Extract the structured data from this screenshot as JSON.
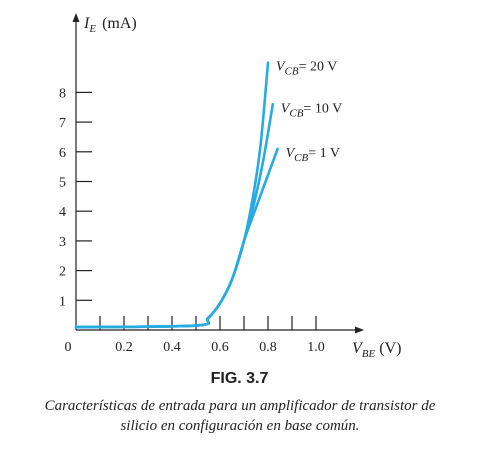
{
  "chart_data": {
    "type": "line",
    "xlabel": {
      "symbol": "V",
      "sub": "BE",
      "unit": "(V)"
    },
    "ylabel": {
      "symbol": "I",
      "sub": "E",
      "unit": "(mA)"
    },
    "xlim": [
      0,
      1.2
    ],
    "ylim": [
      0,
      9
    ],
    "origin_label": "0",
    "xticks": [
      {
        "value": 0.2,
        "label": "0.2"
      },
      {
        "value": 0.4,
        "label": "0.4"
      },
      {
        "value": 0.6,
        "label": "0.6"
      },
      {
        "value": 0.8,
        "label": "0.8"
      },
      {
        "value": 1.0,
        "label": "1.0"
      }
    ],
    "yticks": [
      {
        "value": 1,
        "label": "1"
      },
      {
        "value": 2,
        "label": "2"
      },
      {
        "value": 3,
        "label": "3"
      },
      {
        "value": 4,
        "label": "4"
      },
      {
        "value": 5,
        "label": "5"
      },
      {
        "value": 6,
        "label": "6"
      },
      {
        "value": 7,
        "label": "7"
      },
      {
        "value": 8,
        "label": "8"
      }
    ],
    "series": [
      {
        "name": "VCB20",
        "label": {
          "symbol": "V",
          "sub": "CB",
          "value": "= 20 V"
        },
        "x": [
          0.0,
          0.5,
          0.55,
          0.6,
          0.65,
          0.7,
          0.74,
          0.77,
          0.8
        ],
        "y": [
          0.1,
          0.15,
          0.4,
          0.9,
          1.7,
          3.0,
          4.6,
          6.3,
          9.0
        ]
      },
      {
        "name": "VCB10",
        "label": {
          "symbol": "V",
          "sub": "CB",
          "value": "= 10 V"
        },
        "x": [
          0.0,
          0.5,
          0.55,
          0.6,
          0.65,
          0.7,
          0.74,
          0.78,
          0.82
        ],
        "y": [
          0.1,
          0.15,
          0.4,
          0.9,
          1.7,
          3.0,
          4.2,
          5.7,
          7.6
        ]
      },
      {
        "name": "VCB1",
        "label": {
          "symbol": "V",
          "sub": "CB",
          "value": "= 1 V"
        },
        "x": [
          0.0,
          0.5,
          0.55,
          0.6,
          0.65,
          0.7,
          0.74,
          0.79,
          0.84
        ],
        "y": [
          0.1,
          0.15,
          0.4,
          0.9,
          1.7,
          3.0,
          3.9,
          5.0,
          6.1
        ]
      }
    ],
    "line_color": "#29abe2"
  },
  "figure": {
    "label": "FIG. 3.7",
    "caption": "Características de entrada para un amplificador de transistor de silicio en configuración en base común."
  }
}
